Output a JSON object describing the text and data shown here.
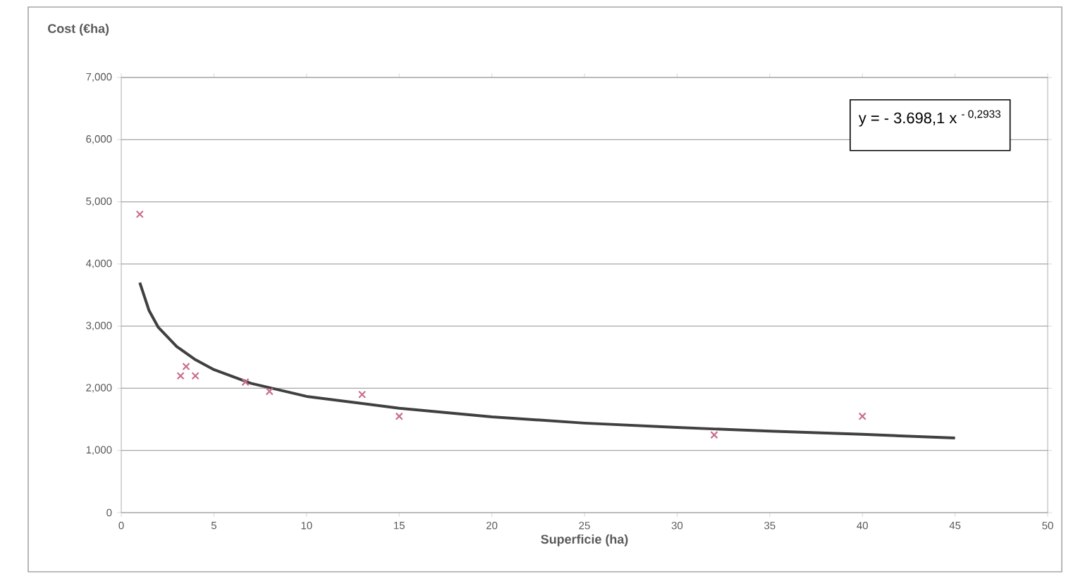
{
  "chart_data": {
    "type": "scatter",
    "xlabel": "Superficie (ha)",
    "ylabel": "Cost (€ha)",
    "annotations": [
      "y = - 3.698,1 x $^{- 0,2933}$"
    ],
    "xlim": [
      0,
      50
    ],
    "xticks": [
      0,
      5,
      10,
      15,
      20,
      25,
      30,
      35,
      40,
      45,
      50
    ],
    "ylim": [
      0,
      7000
    ],
    "yticks": [
      {
        "value": 0,
        "label": "0"
      },
      {
        "value": 1000,
        "label": "1,000"
      },
      {
        "value": 2000,
        "label": "2,000"
      },
      {
        "value": 3000,
        "label": "3,000"
      },
      {
        "value": 4000,
        "label": "4,000"
      },
      {
        "value": 5000,
        "label": "5,000"
      },
      {
        "value": 6000,
        "label": "6,000"
      },
      {
        "value": 7000,
        "label": "7,000"
      }
    ],
    "grid": "y",
    "legend": false,
    "series": [
      {
        "type": "scatter",
        "color": "#c8708c",
        "marker": "cross",
        "x": [
          1,
          3.2,
          3.5,
          4,
          6.7,
          8,
          13,
          15,
          32,
          40
        ],
        "values": [
          4800,
          2200,
          2350,
          2200,
          2100,
          1950,
          1900,
          1550,
          1250,
          1550
        ]
      },
      {
        "type": "line",
        "color": "#404040",
        "marker": "none",
        "line_style": "solid",
        "x": [
          1,
          1.5,
          2,
          3,
          4,
          5,
          7,
          10,
          15,
          20,
          25,
          30,
          35,
          40,
          45
        ],
        "values": [
          3700,
          3250,
          2980,
          2670,
          2460,
          2300,
          2080,
          1870,
          1680,
          1540,
          1440,
          1370,
          1310,
          1260,
          1200
        ]
      }
    ]
  }
}
